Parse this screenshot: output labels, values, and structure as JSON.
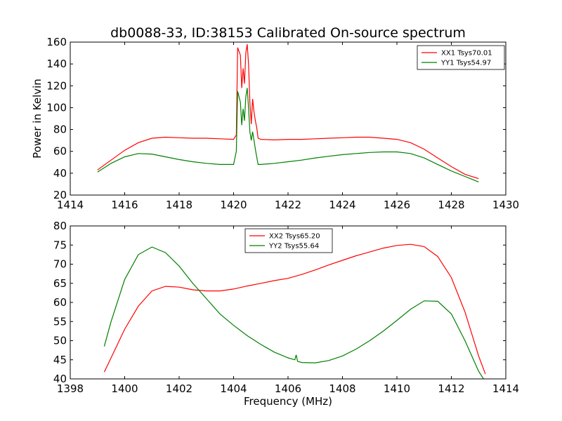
{
  "figure": {
    "title": "db0088-33, ID:38153 Calibrated On-source spectrum",
    "xlabel": "Frequency (MHz)"
  },
  "chart_data": [
    {
      "type": "line",
      "title": "db0088-33, ID:38153 Calibrated On-source spectrum",
      "xlabel": "",
      "ylabel": "Power in Kelvin",
      "xlim": [
        1414,
        1430
      ],
      "ylim": [
        20,
        160
      ],
      "xticks": [
        1414,
        1416,
        1418,
        1420,
        1422,
        1424,
        1426,
        1428,
        1430
      ],
      "yticks": [
        20,
        40,
        60,
        80,
        100,
        120,
        140,
        160
      ],
      "grid": false,
      "legend": "top-right",
      "series": [
        {
          "name": "XX1 Tsys70.01",
          "color": "#ff0000",
          "x": [
            1415.0,
            1415.5,
            1416.0,
            1416.5,
            1417.0,
            1417.5,
            1418.0,
            1418.5,
            1419.0,
            1419.5,
            1420.0,
            1420.1,
            1420.15,
            1420.25,
            1420.3,
            1420.35,
            1420.4,
            1420.45,
            1420.5,
            1420.55,
            1420.6,
            1420.65,
            1420.7,
            1420.75,
            1420.8,
            1420.85,
            1420.9,
            1421.0,
            1421.5,
            1422.0,
            1422.5,
            1423.0,
            1423.5,
            1424.0,
            1424.5,
            1425.0,
            1425.5,
            1426.0,
            1426.5,
            1427.0,
            1427.5,
            1428.0,
            1428.5,
            1429.0
          ],
          "y": [
            43,
            52,
            61,
            68,
            72,
            73,
            72.5,
            72,
            72,
            71.5,
            71,
            75,
            155,
            148,
            118,
            136,
            122,
            150,
            158,
            140,
            105,
            85,
            108,
            96,
            88,
            82,
            72,
            71,
            70.5,
            71,
            71,
            71.5,
            72,
            72.5,
            73,
            73,
            72,
            71,
            68,
            62,
            54,
            46,
            39,
            35
          ]
        },
        {
          "name": "YY1 Tsys54.97",
          "color": "#008000",
          "x": [
            1415.0,
            1415.5,
            1416.0,
            1416.5,
            1417.0,
            1417.5,
            1418.0,
            1418.5,
            1419.0,
            1419.5,
            1420.0,
            1420.1,
            1420.15,
            1420.25,
            1420.3,
            1420.35,
            1420.4,
            1420.45,
            1420.5,
            1420.55,
            1420.6,
            1420.65,
            1420.7,
            1420.75,
            1420.8,
            1420.85,
            1420.9,
            1421.0,
            1421.5,
            1422.0,
            1422.5,
            1423.0,
            1423.5,
            1424.0,
            1424.5,
            1425.0,
            1425.5,
            1426.0,
            1426.5,
            1427.0,
            1427.5,
            1428.0,
            1428.5,
            1429.0
          ],
          "y": [
            41,
            49,
            55,
            58,
            57.5,
            55,
            52.5,
            50.5,
            49,
            48,
            48,
            60,
            115,
            105,
            84,
            99,
            88,
            110,
            118,
            100,
            78,
            70,
            78,
            70,
            62,
            55,
            48,
            48,
            49,
            50.5,
            52,
            54,
            55.5,
            57,
            58,
            59,
            59.5,
            59.5,
            58,
            54,
            48,
            42,
            37,
            32
          ]
        }
      ]
    },
    {
      "type": "line",
      "title": "",
      "xlabel": "Frequency (MHz)",
      "ylabel": "",
      "xlim": [
        1398,
        1414
      ],
      "ylim": [
        40,
        80
      ],
      "xticks": [
        1398,
        1400,
        1402,
        1404,
        1406,
        1408,
        1410,
        1412,
        1414
      ],
      "yticks": [
        40,
        45,
        50,
        55,
        60,
        65,
        70,
        75,
        80
      ],
      "grid": false,
      "legend": "top-center",
      "series": [
        {
          "name": "XX2 Tsys65.20",
          "color": "#ff0000",
          "x": [
            1399.25,
            1399.5,
            1400.0,
            1400.5,
            1401.0,
            1401.5,
            1402.0,
            1402.5,
            1403.0,
            1403.5,
            1404.0,
            1404.5,
            1405.0,
            1405.5,
            1406.0,
            1406.5,
            1407.0,
            1407.5,
            1408.0,
            1408.5,
            1409.0,
            1409.5,
            1410.0,
            1410.5,
            1411.0,
            1411.5,
            1412.0,
            1412.5,
            1413.0,
            1413.25
          ],
          "y": [
            41.8,
            45.5,
            53,
            59,
            63,
            64.2,
            64,
            63.3,
            63,
            63,
            63.5,
            64.3,
            65,
            65.7,
            66.3,
            67.3,
            68.5,
            69.8,
            71,
            72.2,
            73.2,
            74.2,
            74.9,
            75.2,
            74.6,
            72,
            66.5,
            57.5,
            46,
            41.3
          ]
        },
        {
          "name": "YY2 Tsys55.64",
          "color": "#008000",
          "x": [
            1399.25,
            1399.5,
            1400.0,
            1400.5,
            1401.0,
            1401.5,
            1402.0,
            1402.5,
            1403.0,
            1403.5,
            1404.0,
            1404.5,
            1405.0,
            1405.5,
            1406.0,
            1406.25,
            1406.3,
            1406.35,
            1406.5,
            1407.0,
            1407.5,
            1408.0,
            1408.5,
            1409.0,
            1409.5,
            1410.0,
            1410.5,
            1411.0,
            1411.5,
            1412.0,
            1412.5,
            1413.0,
            1413.2
          ],
          "y": [
            48.5,
            55,
            66,
            72.5,
            74.5,
            73,
            69.5,
            65,
            61,
            57,
            54,
            51.3,
            49,
            47,
            45.5,
            45,
            46.3,
            44.6,
            44.3,
            44.2,
            44.8,
            46,
            47.8,
            50,
            52.5,
            55.3,
            58.2,
            60.4,
            60.3,
            57,
            50,
            42,
            39.8
          ]
        }
      ]
    }
  ]
}
